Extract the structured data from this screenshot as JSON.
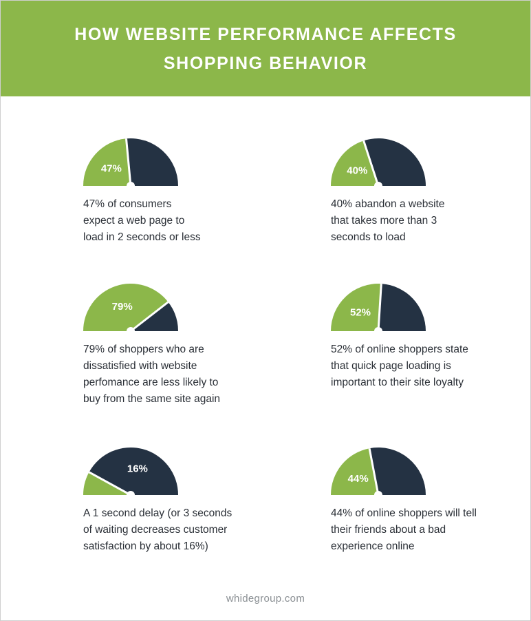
{
  "title": {
    "line1": "HOW WEBSITE PERFORMANCE AFFECTS",
    "line2": "SHOPPING BEHAVIOR"
  },
  "colors": {
    "header_bg": "#8cb74a",
    "green": "#8cb74a",
    "navy": "#243243",
    "needle": "#ffffff"
  },
  "stats": [
    {
      "percent": 47,
      "label": "47%",
      "lines": [
        "47% of consumers",
        "expect a web page to",
        "load in 2 seconds or less"
      ]
    },
    {
      "percent": 40,
      "label": "40%",
      "lines": [
        "40% abandon a website",
        "that takes more than 3",
        "seconds to load"
      ]
    },
    {
      "percent": 79,
      "label": "79%",
      "lines": [
        "79% of shoppers who are",
        "dissatisfied with website",
        "perfomance are less likely to",
        "buy from the same site again"
      ]
    },
    {
      "percent": 52,
      "label": "52%",
      "lines": [
        "52% of online shoppers state",
        "that quick page loading is",
        "important to their site loyalty"
      ]
    },
    {
      "percent": 16,
      "label": "16%",
      "lines": [
        "A 1 second delay (or 3 seconds",
        "of waiting decreases customer",
        "satisfaction by about 16%)"
      ]
    },
    {
      "percent": 44,
      "label": "44%",
      "lines": [
        "44% of online shoppers will tell",
        "their friends about a bad",
        "experience online"
      ]
    }
  ],
  "footer": "whidegroup.com"
}
